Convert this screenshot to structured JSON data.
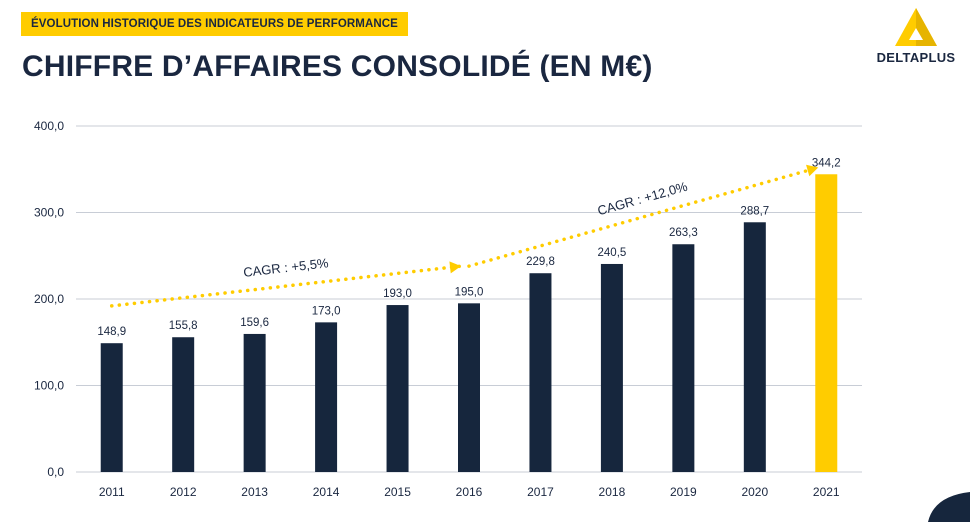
{
  "header": {
    "tag": "ÉVOLUTION HISTORIQUE DES INDICATEURS DE PERFORMANCE",
    "title": "CHIFFRE D’AFFAIRES CONSOLIDÉ (EN M€)",
    "logo_text": "DELTAPLUS"
  },
  "colors": {
    "bar": "#16263d",
    "highlight": "#ffcc00",
    "text": "#1a2740",
    "grid": "#c8cdd6"
  },
  "chart_data": {
    "type": "bar",
    "title": "CHIFFRE D’AFFAIRES CONSOLIDÉ (EN M€)",
    "categories": [
      "2011",
      "2012",
      "2013",
      "2014",
      "2015",
      "2016",
      "2017",
      "2018",
      "2019",
      "2020",
      "2021"
    ],
    "values": [
      148.9,
      155.8,
      159.6,
      173.0,
      193.0,
      195.0,
      229.8,
      240.5,
      263.3,
      288.7,
      344.2
    ],
    "value_labels": [
      "148,9",
      "155,8",
      "159,6",
      "173,0",
      "193,0",
      "195,0",
      "229,8",
      "240,5",
      "263,3",
      "288,7",
      "344,2"
    ],
    "highlight_category": "2021",
    "ylim": [
      0,
      400
    ],
    "yticks": [
      0,
      100,
      200,
      300,
      400
    ],
    "ytick_labels": [
      "0,0",
      "100,0",
      "200,0",
      "300,0",
      "400,0"
    ],
    "grid": true,
    "annotations": [
      {
        "text": "CAGR : +5,5%",
        "from_category": "2011",
        "to_category": "2016",
        "y_start": 192,
        "y_end": 238
      },
      {
        "text": "CAGR : +12,0%",
        "from_category": "2016",
        "to_category": "2021",
        "y_start": 238,
        "y_end": 352
      }
    ]
  }
}
